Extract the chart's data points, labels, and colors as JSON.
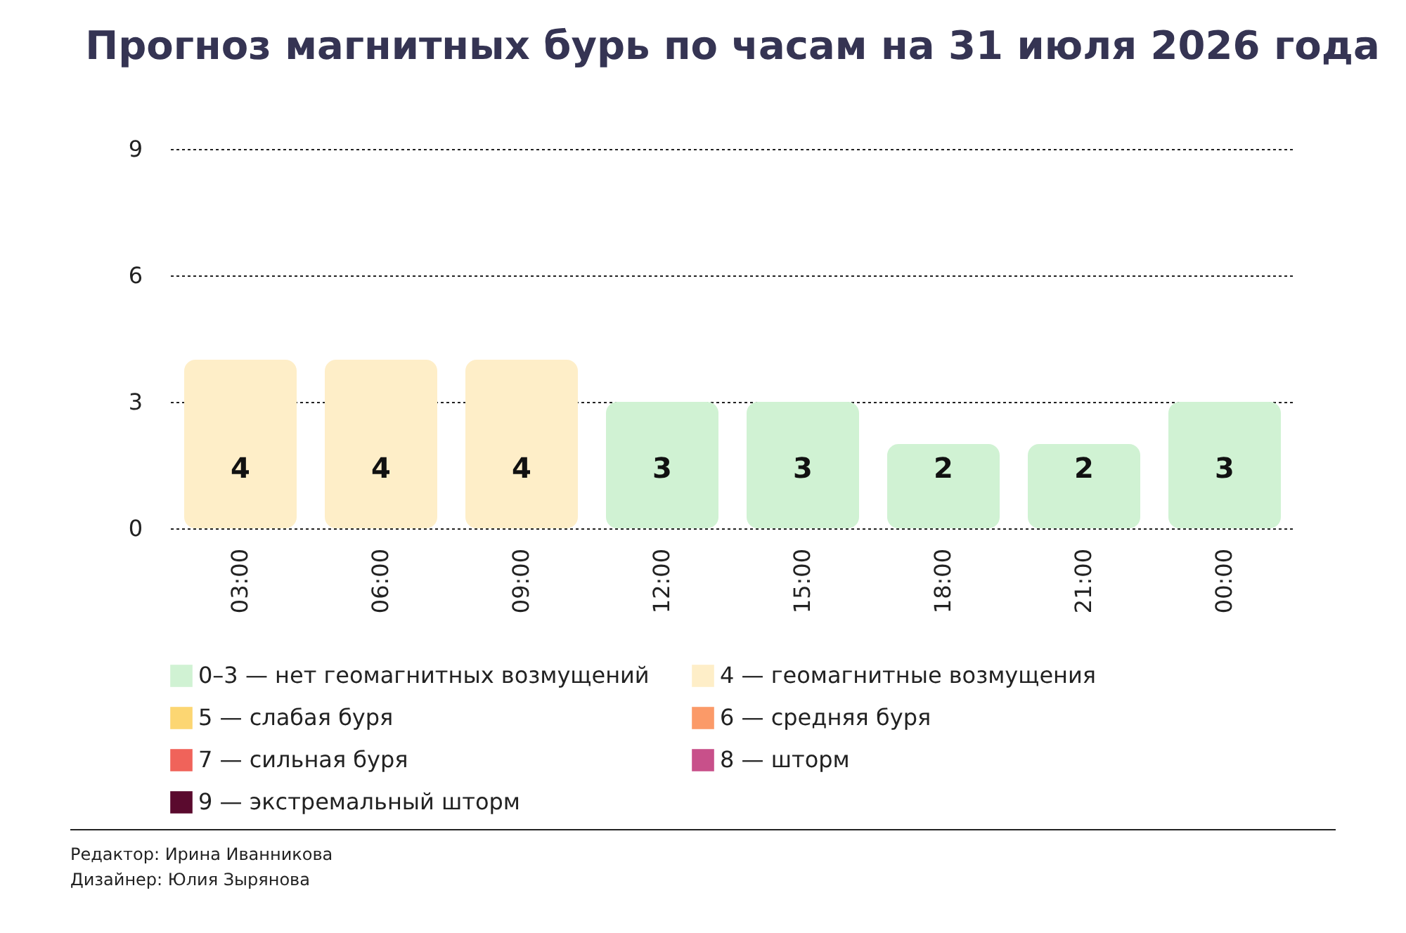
{
  "chart_data": {
    "type": "bar",
    "title": "Прогноз магнитных бурь по часам на 31 июля 2026 года",
    "categories": [
      "03:00",
      "06:00",
      "09:00",
      "12:00",
      "15:00",
      "18:00",
      "21:00",
      "00:00"
    ],
    "series": [
      {
        "name": "0–3 — нет геомагнитных возмущений",
        "color": "#d0f2d3",
        "values": [
          null,
          null,
          null,
          3,
          3,
          2,
          2,
          3
        ]
      },
      {
        "name": "4 — геомагнитные возмущения",
        "color": "#feeec8",
        "values": [
          4,
          4,
          4,
          null,
          null,
          null,
          null,
          null
        ]
      },
      {
        "name": "5 — слабая буря",
        "color": "#fcd672",
        "values": [
          null,
          null,
          null,
          null,
          null,
          null,
          null,
          null
        ]
      },
      {
        "name": "6 — средняя буря",
        "color": "#fb9a68",
        "values": [
          null,
          null,
          null,
          null,
          null,
          null,
          null,
          null
        ]
      },
      {
        "name": "7 — сильная буря",
        "color": "#f0635a",
        "values": [
          null,
          null,
          null,
          null,
          null,
          null,
          null,
          null
        ]
      },
      {
        "name": "8 — шторм",
        "color": "#c8508a",
        "values": [
          null,
          null,
          null,
          null,
          null,
          null,
          null,
          null
        ]
      },
      {
        "name": "9 — экстремальный шторм",
        "color": "#5a0a2e",
        "values": [
          null,
          null,
          null,
          null,
          null,
          null,
          null,
          null
        ]
      }
    ],
    "ylim": [
      0,
      9
    ],
    "yticks": [
      0,
      3,
      6,
      9
    ],
    "grid": "y",
    "legend": "bottom",
    "data_labels": true,
    "annotations": [
      "Редактор: Ирина Иванникова",
      "Дизайнер: Юлия Зырянова"
    ]
  }
}
